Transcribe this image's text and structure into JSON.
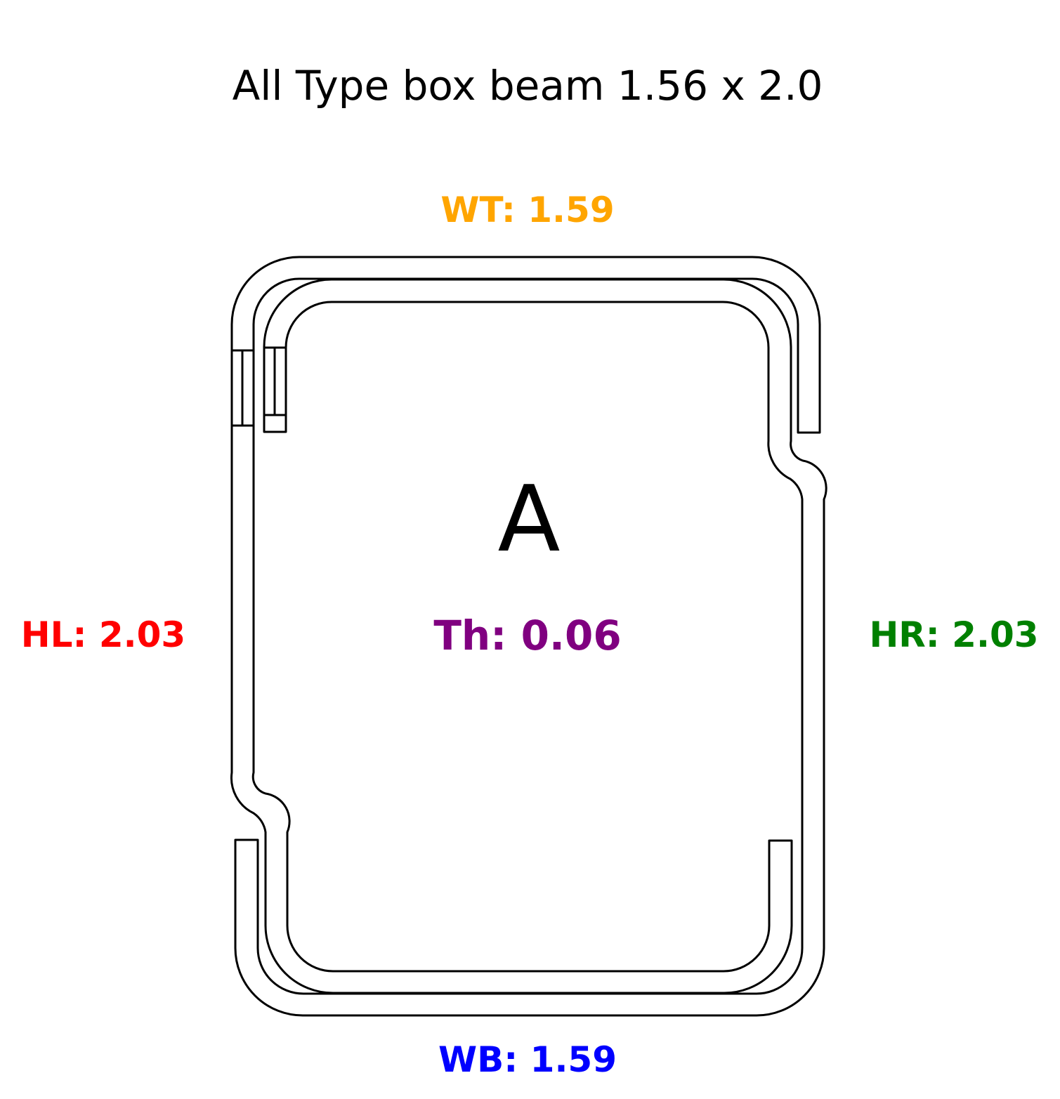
{
  "title": "All Type box beam 1.56 x 2.0",
  "section_label": "A",
  "dimensions": {
    "top_width": {
      "text": "WT: 1.59",
      "color": "#FFA500"
    },
    "bottom_width": {
      "text": "WB: 1.59",
      "color": "#0000FF"
    },
    "left_height": {
      "text": "HL: 2.03",
      "color": "#FF0000"
    },
    "right_height": {
      "text": "HR: 2.03",
      "color": "#008000"
    },
    "thickness": {
      "text": "Th: 0.06",
      "color": "#800080"
    }
  },
  "outline_color": "#000000"
}
